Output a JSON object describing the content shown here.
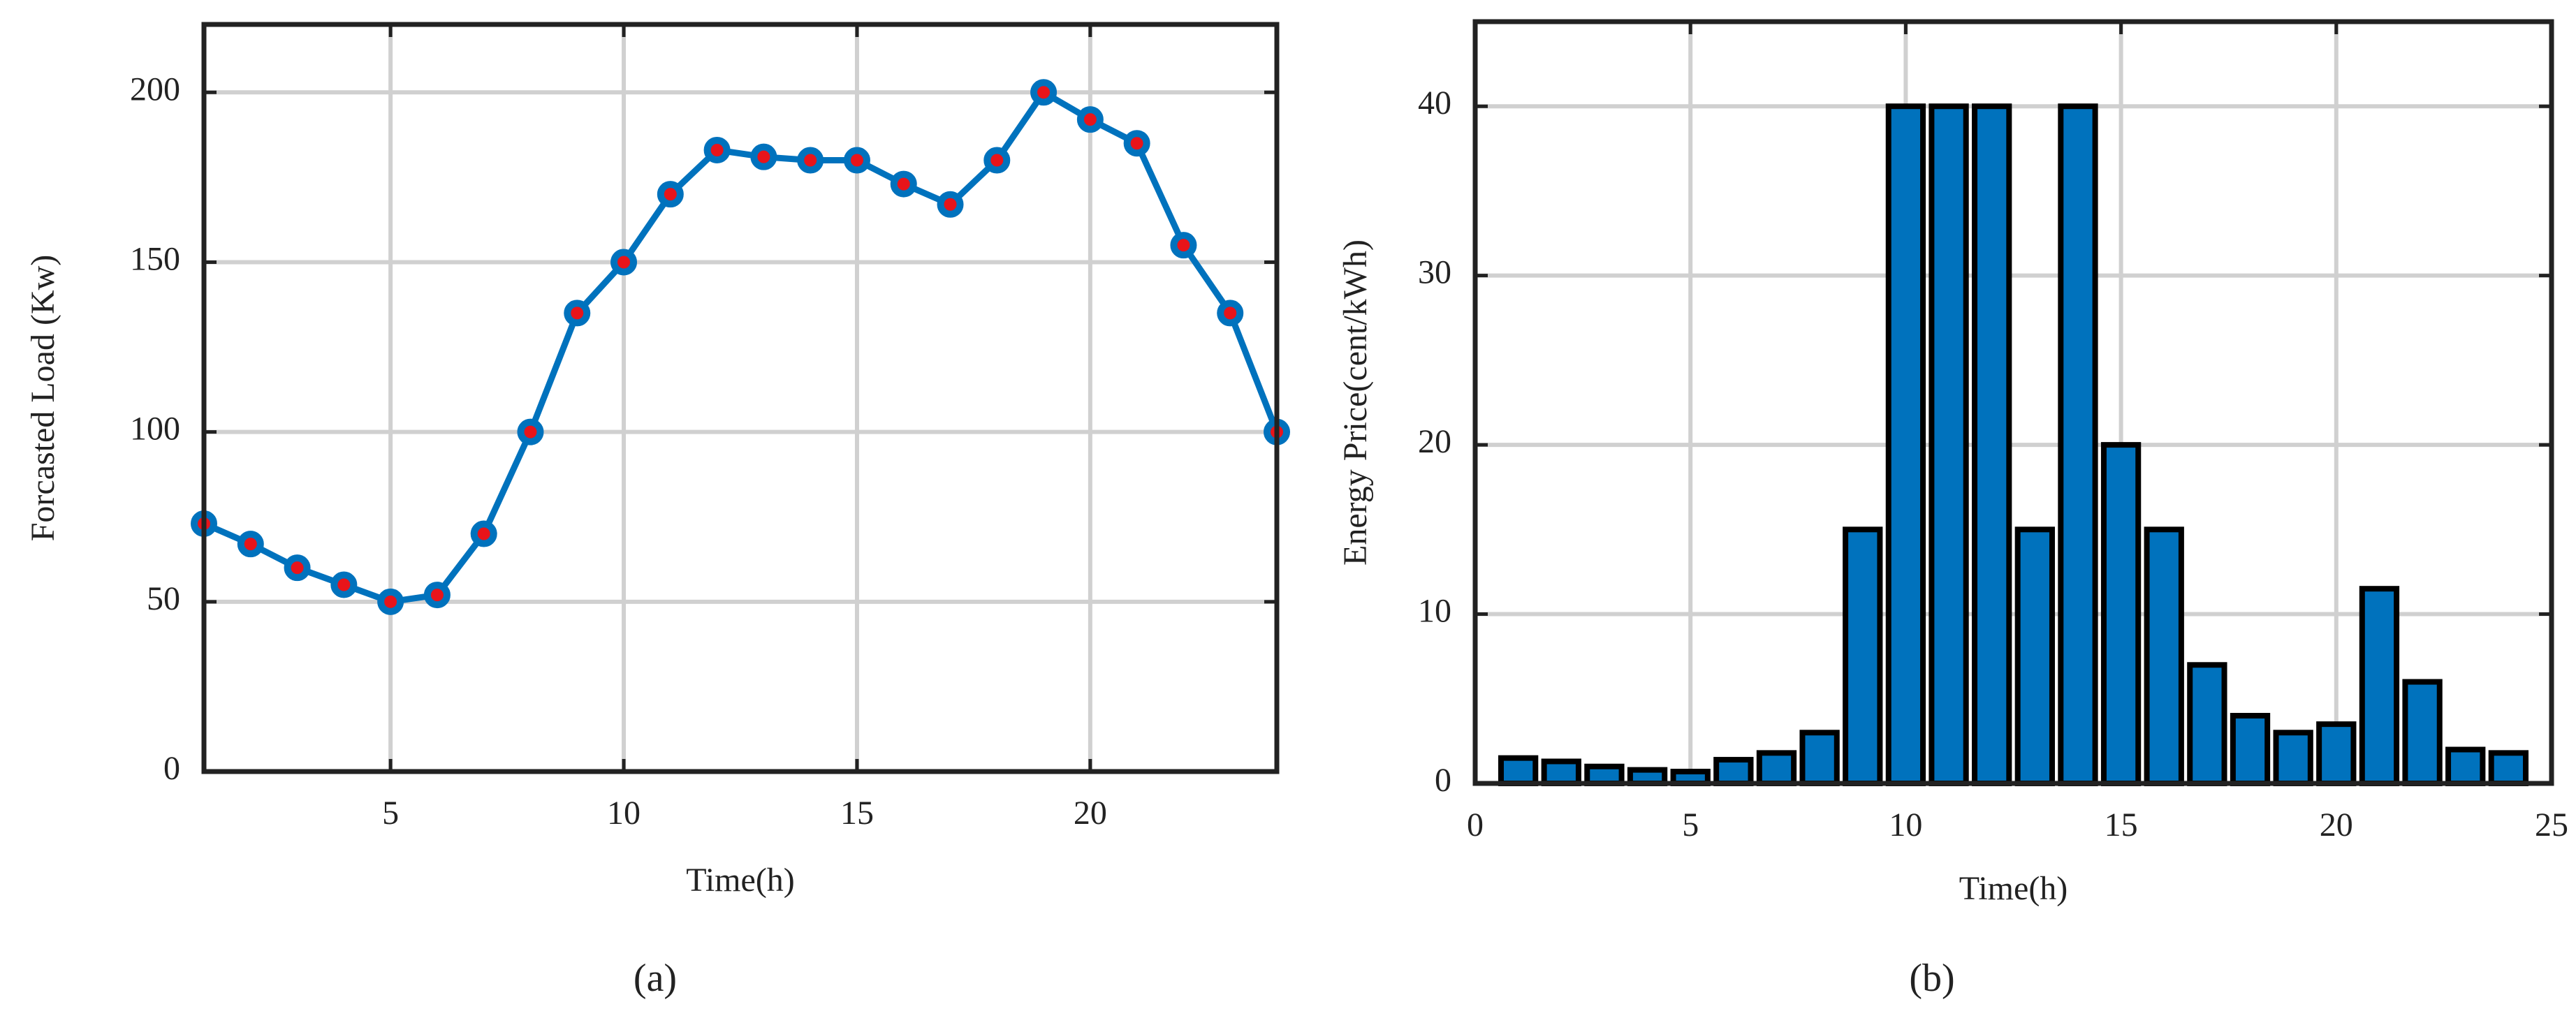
{
  "chart_data": [
    {
      "type": "line",
      "label": "(a)",
      "xlabel": "Time(h)",
      "ylabel": "Forcasted Load (Kw)",
      "x": [
        1,
        2,
        3,
        4,
        5,
        6,
        7,
        8,
        9,
        10,
        11,
        12,
        13,
        14,
        15,
        16,
        17,
        18,
        19,
        20,
        21,
        22,
        23,
        24
      ],
      "values": [
        73,
        67,
        60,
        55,
        50,
        52,
        70,
        100,
        135,
        150,
        170,
        183,
        181,
        180,
        180,
        173,
        167,
        180,
        200,
        192,
        185,
        155,
        135,
        100
      ],
      "color": "#0072bd",
      "marker_color": "#e8141a",
      "xlim": [
        1,
        24
      ],
      "xticks": [
        5,
        10,
        15,
        20
      ],
      "ylim": [
        0,
        220
      ],
      "yticks": [
        0,
        50,
        100,
        150,
        200
      ],
      "grid": true
    },
    {
      "type": "bar",
      "label": "(b)",
      "xlabel": "Time(h)",
      "ylabel": "Energy Price(cent/kWh)",
      "x": [
        1,
        2,
        3,
        4,
        5,
        6,
        7,
        8,
        9,
        10,
        11,
        12,
        13,
        14,
        15,
        16,
        17,
        18,
        19,
        20,
        21,
        22,
        23,
        24
      ],
      "values": [
        1.5,
        1.3,
        1,
        0.8,
        0.7,
        1.4,
        1.8,
        3,
        15,
        40,
        40,
        40,
        15,
        40,
        20,
        15,
        7,
        4,
        3,
        3.5,
        11.5,
        6,
        2,
        1.8
      ],
      "color": "#0072bd",
      "edge_color": "#000000",
      "xlim": [
        0,
        25
      ],
      "xticks": [
        0,
        5,
        10,
        15,
        20,
        25
      ],
      "ylim": [
        0,
        45
      ],
      "yticks": [
        0,
        10,
        20,
        30,
        40
      ],
      "grid": true
    }
  ]
}
